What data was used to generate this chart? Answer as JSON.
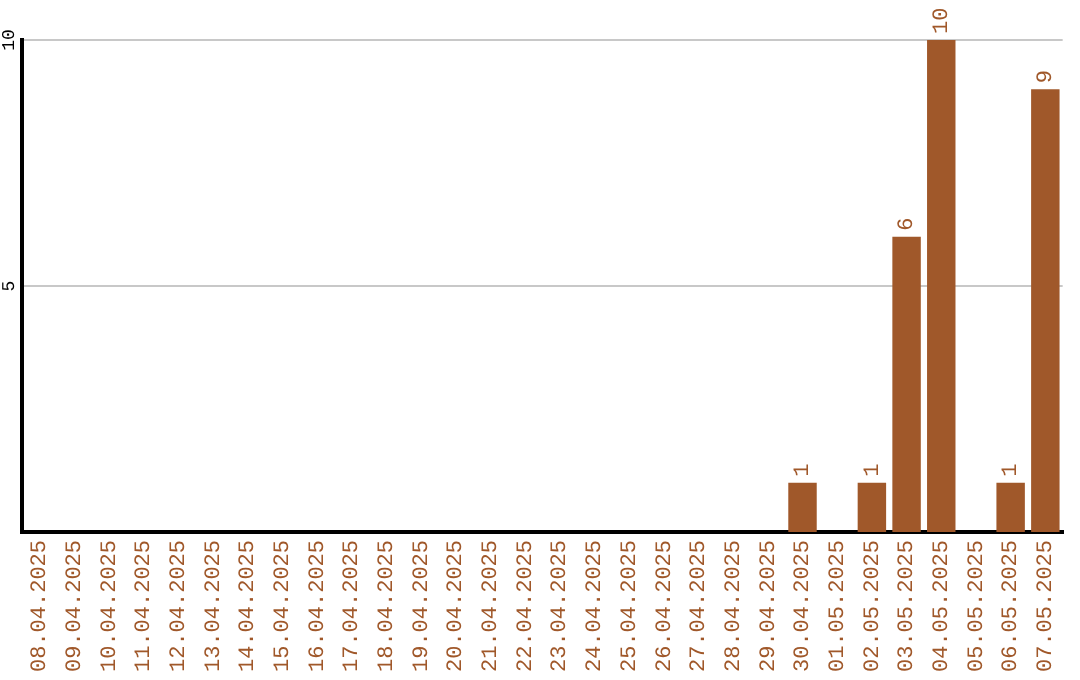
{
  "chart_data": {
    "type": "bar",
    "categories": [
      "08.04.2025",
      "09.04.2025",
      "10.04.2025",
      "11.04.2025",
      "12.04.2025",
      "13.04.2025",
      "14.04.2025",
      "15.04.2025",
      "16.04.2025",
      "17.04.2025",
      "18.04.2025",
      "19.04.2025",
      "20.04.2025",
      "21.04.2025",
      "22.04.2025",
      "23.04.2025",
      "24.04.2025",
      "25.04.2025",
      "26.04.2025",
      "27.04.2025",
      "28.04.2025",
      "29.04.2025",
      "30.04.2025",
      "01.05.2025",
      "02.05.2025",
      "03.05.2025",
      "04.05.2025",
      "05.05.2025",
      "06.05.2025",
      "07.05.2025"
    ],
    "values": [
      0,
      0,
      0,
      0,
      0,
      0,
      0,
      0,
      0,
      0,
      0,
      0,
      0,
      0,
      0,
      0,
      0,
      0,
      0,
      0,
      0,
      0,
      1,
      0,
      1,
      6,
      10,
      0,
      1,
      9
    ],
    "value_labels": [
      null,
      null,
      null,
      null,
      null,
      null,
      null,
      null,
      null,
      null,
      null,
      null,
      null,
      null,
      null,
      null,
      null,
      null,
      null,
      null,
      null,
      null,
      "1",
      null,
      "1",
      "6",
      "10",
      null,
      "1",
      "9"
    ],
    "color": "#a0582a",
    "ylim": [
      0,
      10
    ],
    "yticks": [
      5,
      10
    ],
    "grid": "y",
    "legend": false
  }
}
